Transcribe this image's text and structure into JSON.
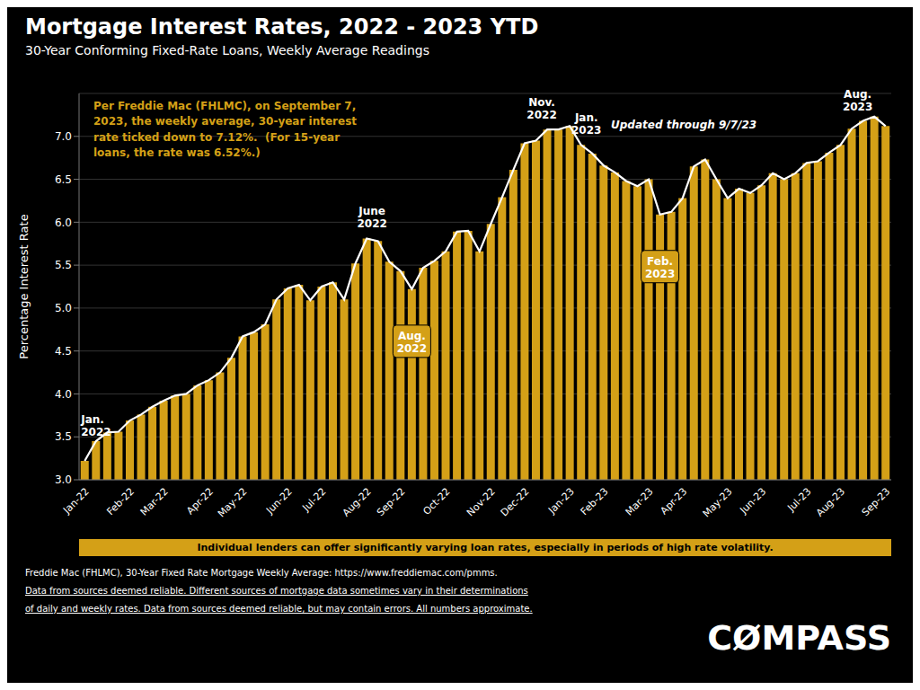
{
  "chart_data": {
    "type": "bar",
    "title": "Mortgage Interest Rates, 2022 - 2023 YTD",
    "subtitle": "30-Year Conforming Fixed-Rate Loans, Weekly Average Readings",
    "ylabel": "Percentage Interest Rate",
    "categories": [
      "Jan-22",
      null,
      null,
      null,
      "Feb-22",
      null,
      null,
      "Mar-22",
      null,
      null,
      null,
      "Apr-22",
      null,
      null,
      "May-22",
      null,
      null,
      null,
      "Jun-22",
      null,
      null,
      "Jul-22",
      null,
      null,
      null,
      "Aug-22",
      null,
      null,
      "Sep-22",
      null,
      null,
      null,
      "Oct-22",
      null,
      null,
      null,
      "Nov-22",
      null,
      null,
      "Dec-22",
      null,
      null,
      null,
      "Jan-23",
      null,
      null,
      "Feb-23",
      null,
      null,
      null,
      "Mar-23",
      null,
      null,
      "Apr-23",
      null,
      null,
      null,
      "May-23",
      null,
      null,
      "Jun-23",
      null,
      null,
      null,
      "Jul-23",
      null,
      null,
      "Aug-23",
      null,
      null,
      null,
      "Sep-23"
    ],
    "series": [
      {
        "type": "bar",
        "color": "#D4A017",
        "values": [
          3.22,
          3.45,
          3.55,
          3.56,
          3.69,
          3.76,
          3.85,
          3.92,
          3.98,
          4.0,
          4.1,
          4.16,
          4.25,
          4.42,
          4.67,
          4.72,
          4.81,
          5.1,
          5.23,
          5.27,
          5.09,
          5.25,
          5.3,
          5.1,
          5.52,
          5.81,
          5.78,
          5.54,
          5.43,
          5.22,
          5.47,
          5.55,
          5.66,
          5.89,
          5.9,
          5.66,
          5.98,
          6.29,
          6.61,
          6.92,
          6.95,
          7.08,
          7.08,
          7.12,
          6.9,
          6.8,
          6.66,
          6.58,
          6.48,
          6.42,
          6.5,
          6.09,
          6.12,
          6.28,
          6.65,
          6.73,
          6.5,
          6.28,
          6.39,
          6.34,
          6.43,
          6.57,
          6.5,
          6.57,
          6.69,
          6.71,
          6.81,
          6.9,
          7.09,
          7.18,
          7.23,
          7.12
        ]
      },
      {
        "type": "line",
        "color": "#FFFFFF",
        "values": [
          3.22,
          3.45,
          3.55,
          3.56,
          3.69,
          3.76,
          3.85,
          3.92,
          3.98,
          4.0,
          4.1,
          4.16,
          4.25,
          4.42,
          4.67,
          4.72,
          4.81,
          5.1,
          5.23,
          5.27,
          5.09,
          5.25,
          5.3,
          5.1,
          5.52,
          5.81,
          5.78,
          5.54,
          5.43,
          5.22,
          5.47,
          5.55,
          5.66,
          5.89,
          5.9,
          5.66,
          5.98,
          6.29,
          6.61,
          6.92,
          6.95,
          7.08,
          7.08,
          7.12,
          6.9,
          6.8,
          6.66,
          6.58,
          6.48,
          6.42,
          6.5,
          6.09,
          6.12,
          6.28,
          6.65,
          6.73,
          6.5,
          6.28,
          6.39,
          6.34,
          6.43,
          6.57,
          6.5,
          6.57,
          6.69,
          6.71,
          6.81,
          6.9,
          7.09,
          7.18,
          7.23,
          7.12
        ]
      }
    ],
    "ylim": [
      3.0,
      7.5
    ],
    "yticks": [
      {
        "value": 3.0,
        "label": "3.0"
      },
      3.5,
      {
        "value": 4.0,
        "label": "4.0"
      },
      4.5,
      {
        "value": 5.0,
        "label": "5.0"
      },
      5.5,
      {
        "value": 6.0,
        "label": "6.0"
      },
      6.5,
      {
        "value": 7.0,
        "label": "7.0"
      }
    ],
    "grid": true,
    "annotations": [
      "Per Freddie Mac (FHLMC), on September 7,\n2023, the weekly average, 30-year interest\nrate ticked down to 7.12%.  (For 15-year\nloans, the rate was 6.52%.)",
      "Jan.\n2022",
      "June\n2022",
      "Aug.\n2022",
      "Nov.\n2022",
      "Jan.\n2023",
      "Feb.\n2023",
      "Aug.\n2023",
      "Updated through 9/7/23",
      "Individual lenders can offer significantly varying loan rates, especially in periods of high rate volatility.",
      "CØMPASS"
    ],
    "footer": [
      "Freddie Mac (FHLMC), 30-Year Fixed Rate Mortgage Weekly Average:  https://www.freddiemac.com/pmms.",
      "Data from sources deemed reliable. Different sources of mortgage data sometimes vary in their determinations",
      "of daily and weekly rates. Data from sources deemed reliable, but may contain errors. All numbers approximate."
    ]
  }
}
